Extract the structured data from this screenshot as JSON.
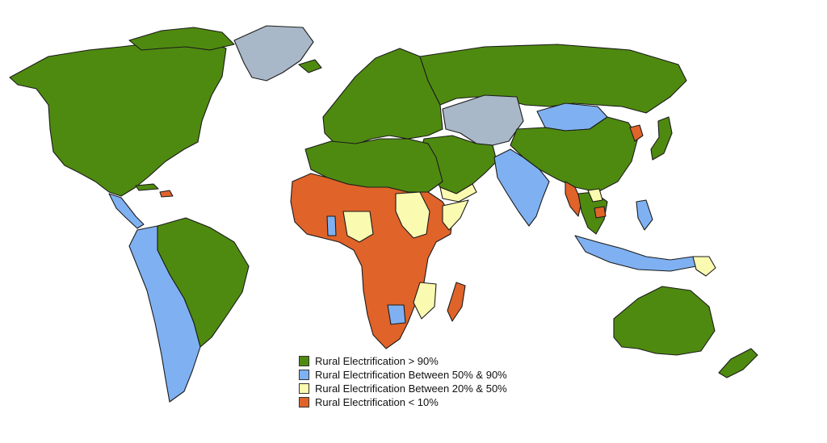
{
  "colors": {
    "high": "#4f8a10",
    "medium": "#7fb1f2",
    "low": "#fafab0",
    "very_low": "#e0632a",
    "no_data": "#a9b8c8"
  },
  "legend": [
    {
      "label": "Rural Electrification > 90%",
      "color": "#4f8a10"
    },
    {
      "label": "Rural Electrification Between 50% & 90%",
      "color": "#7fb1f2"
    },
    {
      "label": "Rural Electrification Between 20% & 50%",
      "color": "#fafab0"
    },
    {
      "label": "Rural Electrification < 10%",
      "color": "#e0632a"
    }
  ]
}
